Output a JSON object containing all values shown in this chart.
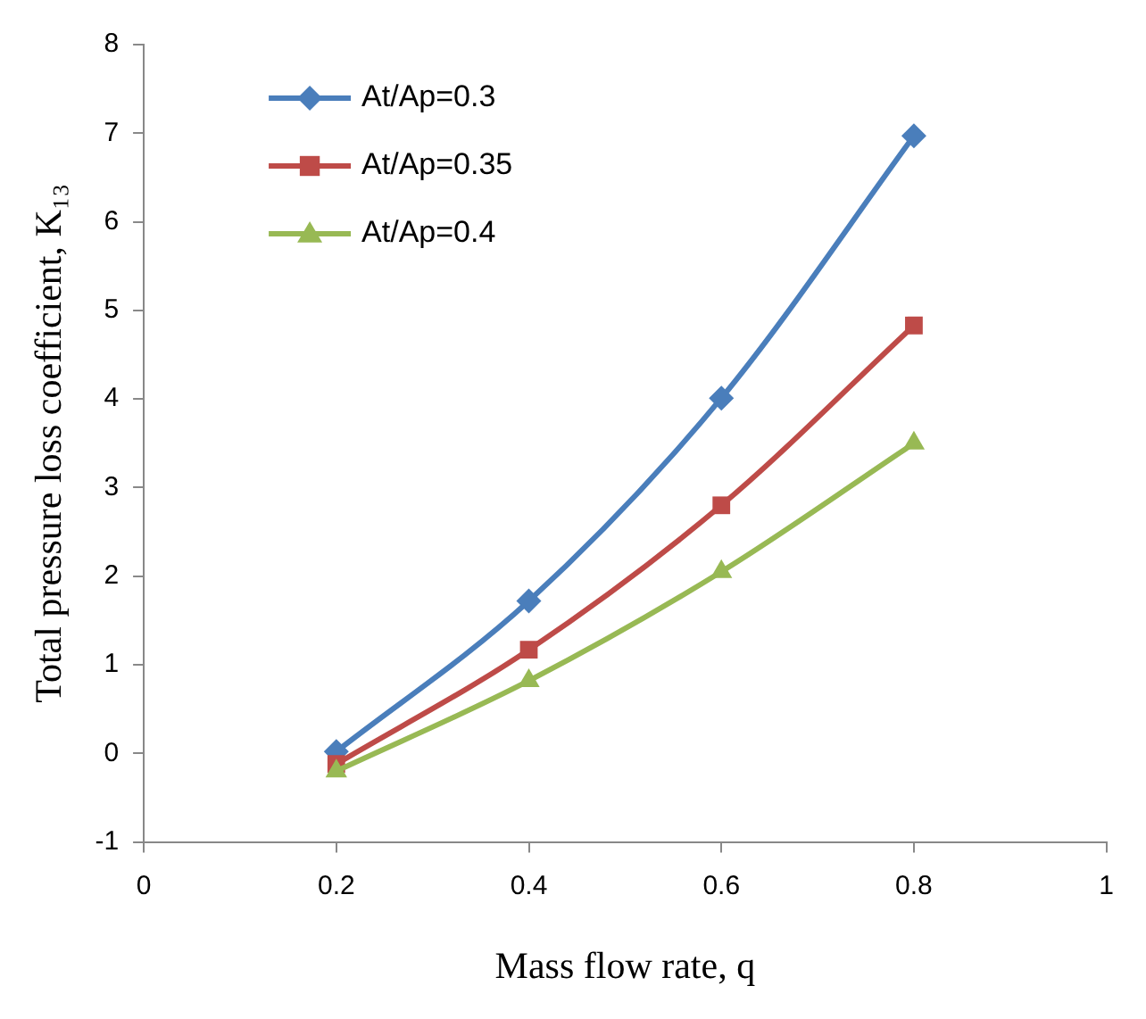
{
  "chart_data": {
    "type": "line",
    "xlabel": "Mass flow rate, q",
    "ylabel": "Total pressure loss coefficient, K₁₃",
    "x": [
      0.2,
      0.4,
      0.6,
      0.8
    ],
    "series": [
      {
        "name": "At/Ap=0.3",
        "color": "#4a7ebb",
        "marker": "diamond",
        "values": [
          0.02,
          1.72,
          4.01,
          6.97
        ]
      },
      {
        "name": "At/Ap=0.35",
        "color": "#be4b48",
        "marker": "square",
        "values": [
          -0.12,
          1.17,
          2.8,
          4.83
        ]
      },
      {
        "name": "At/Ap=0.4",
        "color": "#98b954",
        "marker": "triangle",
        "values": [
          -0.2,
          0.82,
          2.05,
          3.5
        ]
      }
    ],
    "xlim": [
      0,
      1
    ],
    "xticks": [
      0,
      0.2,
      0.4,
      0.6,
      0.8,
      1
    ],
    "ylim": [
      -1,
      8
    ],
    "yticks": [
      -1,
      0,
      1,
      2,
      3,
      4,
      5,
      6,
      7,
      8
    ],
    "grid": false,
    "legend": "top left",
    "line_style": "solid"
  }
}
